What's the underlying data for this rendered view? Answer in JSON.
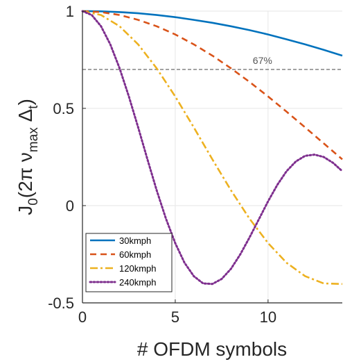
{
  "chart_data": {
    "type": "line",
    "title": "",
    "xlabel": "# OFDM symbols",
    "ylabel": "J₀(2π ν_max Δ_t)",
    "ylabel_parts": {
      "prefix": "J",
      "sub0": "0",
      "open": "(2",
      "pi": "π",
      "nu": " ν",
      "submax": "max",
      "delta": " Δ",
      "subt": "t",
      "close": ")"
    },
    "xlim": [
      0,
      14
    ],
    "ylim": [
      -0.5,
      1
    ],
    "xticks": [
      0,
      5,
      10
    ],
    "yticks": [
      -0.5,
      0,
      0.5,
      1
    ],
    "xtick_labels": [
      "0",
      "5",
      "10"
    ],
    "ytick_labels": [
      "-0.5",
      "0",
      "0.5",
      "1"
    ],
    "grid": true,
    "legend_position": "bottom-left",
    "threshold": {
      "y": 0.7,
      "label": "67%",
      "label_x": 9.7
    },
    "series": [
      {
        "name": "30kmph",
        "color": "#0072BD",
        "dash": "solid",
        "x": [
          0,
          1,
          2,
          3,
          4,
          5,
          6,
          7,
          8,
          9,
          10,
          11,
          12,
          13,
          14
        ],
        "values": [
          1.0,
          0.999,
          0.995,
          0.989,
          0.98,
          0.969,
          0.955,
          0.94,
          0.922,
          0.902,
          0.88,
          0.855,
          0.829,
          0.801,
          0.771
        ]
      },
      {
        "name": "60kmph",
        "color": "#D95319",
        "dash": "dashed",
        "x": [
          0,
          1,
          2,
          3,
          4,
          5,
          6,
          7,
          8,
          9,
          10,
          11,
          12,
          13,
          14
        ],
        "values": [
          1.0,
          0.995,
          0.98,
          0.955,
          0.922,
          0.88,
          0.829,
          0.771,
          0.706,
          0.636,
          0.561,
          0.483,
          0.402,
          0.32,
          0.238
        ]
      },
      {
        "name": "120kmph",
        "color": "#EDB120",
        "dash": "dashdot",
        "x": [
          0,
          1,
          2,
          3,
          4,
          5,
          6,
          7,
          8,
          9,
          10,
          11,
          12,
          13,
          14
        ],
        "values": [
          1.0,
          0.98,
          0.922,
          0.829,
          0.706,
          0.561,
          0.402,
          0.238,
          0.079,
          -0.067,
          -0.193,
          -0.294,
          -0.363,
          -0.4,
          -0.403
        ]
      },
      {
        "name": "240kmph",
        "color": "#7E2F8E",
        "dash": "dotted",
        "x": [
          0,
          0.5,
          1,
          1.5,
          2,
          2.5,
          3,
          3.5,
          4,
          4.5,
          5,
          5.5,
          6,
          6.5,
          7,
          7.5,
          8,
          8.5,
          9,
          9.5,
          10,
          10.5,
          11,
          11.5,
          12,
          12.5,
          13,
          13.5,
          14
        ],
        "values": [
          1.0,
          0.98,
          0.922,
          0.829,
          0.706,
          0.561,
          0.402,
          0.238,
          0.079,
          -0.067,
          -0.193,
          -0.294,
          -0.363,
          -0.4,
          -0.403,
          -0.377,
          -0.325,
          -0.251,
          -0.164,
          -0.071,
          0.022,
          0.107,
          0.177,
          0.227,
          0.256,
          0.262,
          0.25,
          0.22,
          0.177
        ]
      }
    ]
  }
}
